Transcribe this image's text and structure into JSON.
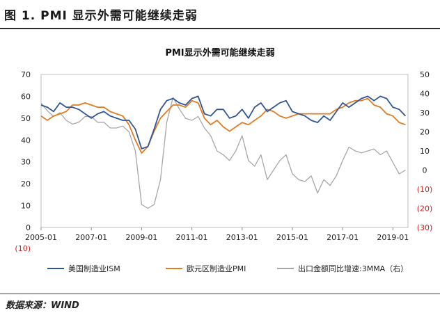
{
  "figure_title": "图 1. PMI 显示外需可能继续走弱",
  "source_text": "数据来源：WIND",
  "chart_data": {
    "type": "line",
    "title": "PMI显示外需可能继续走弱",
    "x_ticks": [
      "2005-01",
      "2007-01",
      "2009-01",
      "2011-01",
      "2013-01",
      "2015-01",
      "2017-01",
      "2019-01"
    ],
    "xlim": [
      2005.0,
      2019.6
    ],
    "left_axis": {
      "ylim": [
        0,
        70
      ],
      "ticks": [
        0,
        10,
        20,
        30,
        40,
        50,
        60,
        70
      ]
    },
    "right_axis": {
      "ylim": [
        -30,
        50
      ],
      "ticks": [
        50,
        40,
        30,
        20,
        10,
        0,
        -10,
        -20,
        -30
      ],
      "tick_labels": [
        "50",
        "40",
        "30",
        "20",
        "10",
        "0",
        "(10)",
        "(20)",
        "(30)"
      ]
    },
    "colors": {
      "ism": "#2f5597",
      "pmi": "#e07b21",
      "exports": "#a6a6a6",
      "negative_label": "#cc1f1f"
    },
    "series": [
      {
        "name": "美国制造业ISM",
        "axis": "left",
        "color": "#2f5597",
        "x": [
          2005.0,
          2005.25,
          2005.5,
          2005.75,
          2006.0,
          2006.25,
          2006.5,
          2006.75,
          2007.0,
          2007.25,
          2007.5,
          2007.75,
          2008.0,
          2008.25,
          2008.5,
          2008.75,
          2009.0,
          2009.25,
          2009.5,
          2009.75,
          2010.0,
          2010.25,
          2010.5,
          2010.75,
          2011.0,
          2011.25,
          2011.5,
          2011.75,
          2012.0,
          2012.25,
          2012.5,
          2012.75,
          2013.0,
          2013.25,
          2013.5,
          2013.75,
          2014.0,
          2014.25,
          2014.5,
          2014.75,
          2015.0,
          2015.25,
          2015.5,
          2015.75,
          2016.0,
          2016.25,
          2016.5,
          2016.75,
          2017.0,
          2017.25,
          2017.5,
          2017.75,
          2018.0,
          2018.25,
          2018.5,
          2018.75,
          2019.0,
          2019.25,
          2019.5
        ],
        "values": [
          56,
          55,
          53,
          57,
          55,
          55,
          54,
          52,
          50,
          52,
          53,
          51,
          50,
          49,
          49,
          45,
          36,
          37,
          45,
          54,
          58,
          59,
          57,
          56,
          59,
          60,
          52,
          51,
          54,
          54,
          50,
          51,
          54,
          50,
          55,
          57,
          53,
          55,
          57,
          58,
          53,
          52,
          51,
          49,
          48,
          51,
          49,
          53,
          57,
          55,
          57,
          59,
          60,
          58,
          60,
          59,
          55,
          54,
          51
        ]
      },
      {
        "name": "欧元区制造业PMI",
        "axis": "left",
        "color": "#e07b21",
        "x": [
          2005.0,
          2005.25,
          2005.5,
          2005.75,
          2006.0,
          2006.25,
          2006.5,
          2006.75,
          2007.0,
          2007.25,
          2007.5,
          2007.75,
          2008.0,
          2008.25,
          2008.5,
          2008.75,
          2009.0,
          2009.25,
          2009.5,
          2009.75,
          2010.0,
          2010.25,
          2010.5,
          2010.75,
          2011.0,
          2011.25,
          2011.5,
          2011.75,
          2012.0,
          2012.25,
          2012.5,
          2012.75,
          2013.0,
          2013.25,
          2013.5,
          2013.75,
          2014.0,
          2014.25,
          2014.5,
          2014.75,
          2015.0,
          2015.25,
          2015.5,
          2015.75,
          2016.0,
          2016.25,
          2016.5,
          2016.75,
          2017.0,
          2017.25,
          2017.5,
          2017.75,
          2018.0,
          2018.25,
          2018.5,
          2018.75,
          2019.0,
          2019.25,
          2019.5
        ],
        "values": [
          51,
          49,
          51,
          52,
          53,
          56,
          56,
          57,
          56,
          55,
          55,
          53,
          52,
          51,
          47,
          40,
          34,
          37,
          44,
          50,
          53,
          56,
          56,
          55,
          58,
          57,
          50,
          47,
          49,
          46,
          44,
          46,
          48,
          47,
          49,
          51,
          54,
          53,
          51,
          50,
          51,
          52,
          52,
          52,
          52,
          52,
          52,
          54,
          55,
          57,
          58,
          58,
          59,
          56,
          55,
          52,
          51,
          48,
          47
        ]
      },
      {
        "name": "出口金额同比增速:3MMA（右）",
        "axis": "right",
        "color": "#a6a6a6",
        "x": [
          2005.0,
          2005.25,
          2005.5,
          2005.75,
          2006.0,
          2006.25,
          2006.5,
          2006.75,
          2007.0,
          2007.25,
          2007.5,
          2007.75,
          2008.0,
          2008.25,
          2008.5,
          2008.75,
          2009.0,
          2009.25,
          2009.5,
          2009.75,
          2010.0,
          2010.25,
          2010.5,
          2010.75,
          2011.0,
          2011.25,
          2011.5,
          2011.75,
          2012.0,
          2012.25,
          2012.5,
          2012.75,
          2013.0,
          2013.25,
          2013.5,
          2013.75,
          2014.0,
          2014.25,
          2014.5,
          2014.75,
          2015.0,
          2015.25,
          2015.5,
          2015.75,
          2016.0,
          2016.25,
          2016.5,
          2016.75,
          2017.0,
          2017.25,
          2017.5,
          2017.75,
          2018.0,
          2018.25,
          2018.5,
          2018.75,
          2019.0,
          2019.25,
          2019.5
        ],
        "values": [
          35,
          31,
          28,
          30,
          26,
          24,
          25,
          28,
          28,
          25,
          25,
          22,
          22,
          23,
          20,
          10,
          -18,
          -20,
          -18,
          -5,
          25,
          38,
          32,
          27,
          26,
          28,
          22,
          18,
          10,
          8,
          5,
          10,
          18,
          5,
          2,
          8,
          -5,
          0,
          5,
          8,
          -2,
          -5,
          -6,
          -3,
          -12,
          -5,
          -8,
          -3,
          5,
          12,
          10,
          9,
          10,
          11,
          8,
          10,
          4,
          -2,
          0
        ]
      }
    ],
    "legend": {
      "placement": "bottom",
      "entries": [
        "美国制造业ISM",
        "欧元区制造业PMI",
        "出口金额同比增速:3MMA（右）"
      ]
    }
  }
}
